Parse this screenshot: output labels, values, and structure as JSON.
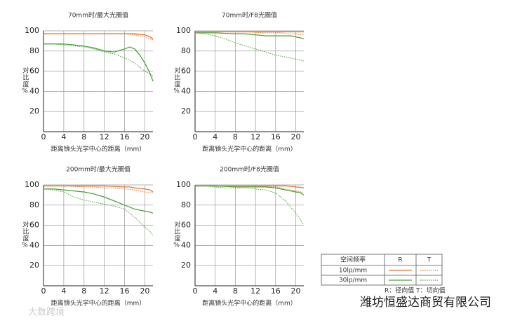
{
  "chart_data": [
    {
      "type": "line",
      "title": "70mm时/最大光圈值",
      "xlabel": "距离镜头光学中心的距离（mm）",
      "ylabel": "对比度%",
      "x": [
        0,
        2,
        4,
        6,
        8,
        10,
        12,
        14,
        16,
        17,
        18,
        19,
        20,
        21,
        21.6
      ],
      "xlim": [
        0,
        21.6
      ],
      "xticks": [
        0,
        4,
        8,
        12,
        16,
        20
      ],
      "ylim": [
        0,
        100
      ],
      "yticks": [
        20,
        40,
        60,
        80,
        100
      ],
      "grid": true,
      "series": [
        {
          "color": "#e8702a",
          "style": "solid",
          "values": [
            97,
            97,
            97,
            97,
            97,
            97,
            97,
            97,
            97,
            97,
            97,
            96.5,
            96,
            94,
            92
          ]
        },
        {
          "color": "#e8702a",
          "style": "dotted",
          "values": [
            97,
            97,
            97,
            97,
            97,
            97,
            97,
            97,
            97,
            96.5,
            96,
            95,
            94,
            92,
            91
          ]
        },
        {
          "color": "#4aa33a",
          "style": "solid",
          "values": [
            87,
            87,
            87,
            86,
            85,
            83,
            80,
            79,
            82,
            84,
            82,
            76,
            68,
            58,
            50
          ]
        },
        {
          "color": "#4aa33a",
          "style": "dotted",
          "values": [
            87,
            87,
            86,
            85,
            84,
            82,
            79,
            77,
            73,
            71,
            68,
            64,
            60,
            57,
            55
          ]
        }
      ]
    },
    {
      "type": "line",
      "title": "70mm时/F8光圈值",
      "xlabel": "距离镜头光学中心的距离（mm）",
      "ylabel": "对比度%",
      "x": [
        0,
        2,
        4,
        6,
        8,
        10,
        12,
        14,
        16,
        17,
        18,
        19,
        20,
        21,
        21.6
      ],
      "xlim": [
        0,
        21.6
      ],
      "xticks": [
        0,
        4,
        8,
        12,
        16,
        20
      ],
      "ylim": [
        0,
        100
      ],
      "yticks": [
        20,
        40,
        60,
        80,
        100
      ],
      "grid": true,
      "series": [
        {
          "color": "#e8702a",
          "style": "solid",
          "values": [
            99,
            99,
            99,
            99,
            99,
            99,
            99,
            99,
            99,
            99,
            99,
            99,
            99,
            99,
            99
          ]
        },
        {
          "color": "#e8702a",
          "style": "dotted",
          "values": [
            99,
            99,
            99,
            99,
            99,
            99,
            98.5,
            98,
            98,
            98,
            97.5,
            97,
            97,
            96,
            96
          ]
        },
        {
          "color": "#4aa33a",
          "style": "solid",
          "values": [
            98,
            98,
            98,
            97.5,
            97,
            97,
            96,
            95,
            95,
            95,
            95,
            95,
            94,
            93,
            92
          ]
        },
        {
          "color": "#4aa33a",
          "style": "dotted",
          "values": [
            98,
            97,
            95,
            92,
            88,
            85,
            82,
            79,
            76,
            75,
            74,
            73,
            72,
            71,
            70
          ]
        }
      ]
    },
    {
      "type": "line",
      "title": "200mm时/最大光圈值",
      "xlabel": "距离镜头光学中心的距离（mm）",
      "ylabel": "对比度%",
      "x": [
        0,
        2,
        4,
        6,
        8,
        10,
        12,
        14,
        16,
        17,
        18,
        19,
        20,
        21,
        21.6
      ],
      "xlim": [
        0,
        21.6
      ],
      "xticks": [
        0,
        4,
        8,
        12,
        16,
        20
      ],
      "ylim": [
        0,
        100
      ],
      "yticks": [
        20,
        40,
        60,
        80,
        100
      ],
      "grid": true,
      "series": [
        {
          "color": "#e8702a",
          "style": "solid",
          "values": [
            99,
            99,
            99,
            99,
            99,
            99,
            99,
            98.5,
            98,
            98,
            97,
            96.5,
            96,
            95,
            93
          ]
        },
        {
          "color": "#e8702a",
          "style": "dotted",
          "values": [
            99,
            99,
            99,
            98.5,
            98,
            98,
            97,
            97,
            96,
            95.5,
            95,
            94,
            93,
            92,
            92
          ]
        },
        {
          "color": "#4aa33a",
          "style": "solid",
          "values": [
            96,
            96,
            95,
            94,
            93,
            91,
            88,
            84,
            80,
            78,
            76,
            75,
            74,
            73,
            72
          ]
        },
        {
          "color": "#4aa33a",
          "style": "dotted",
          "values": [
            96,
            95,
            93,
            88,
            85,
            83,
            81,
            79,
            76,
            72,
            68,
            63,
            58,
            54,
            50
          ]
        }
      ]
    },
    {
      "type": "line",
      "title": "200mm时/F8光圈值",
      "xlabel": "距离镜头光学中心的距离（mm）",
      "ylabel": "对比度%",
      "x": [
        0,
        2,
        4,
        6,
        8,
        10,
        12,
        14,
        16,
        17,
        18,
        19,
        20,
        21,
        21.6
      ],
      "xlim": [
        0,
        21.6
      ],
      "xticks": [
        0,
        4,
        8,
        12,
        16,
        20
      ],
      "ylim": [
        0,
        100
      ],
      "yticks": [
        20,
        40,
        60,
        80,
        100
      ],
      "grid": true,
      "series": [
        {
          "color": "#e8702a",
          "style": "solid",
          "values": [
            99,
            99,
            99,
            99,
            99,
            99,
            99,
            99,
            99,
            99,
            99,
            98.5,
            98,
            97.5,
            97
          ]
        },
        {
          "color": "#e8702a",
          "style": "dotted",
          "values": [
            99,
            99,
            99,
            99,
            99,
            99,
            99,
            98.5,
            98,
            97,
            96,
            95,
            94,
            93,
            92
          ]
        },
        {
          "color": "#4aa33a",
          "style": "solid",
          "values": [
            99,
            99,
            99,
            98.5,
            98,
            98,
            98,
            98,
            97,
            96,
            95,
            94,
            93,
            92,
            90
          ]
        },
        {
          "color": "#4aa33a",
          "style": "dotted",
          "values": [
            99,
            99,
            98,
            97,
            97,
            97,
            96,
            95,
            92,
            88,
            84,
            78,
            72,
            65,
            60
          ]
        }
      ]
    }
  ],
  "legend": {
    "header": [
      "空间频率",
      "R",
      "T"
    ],
    "rows": [
      "10lp/mm",
      "30lp/mm"
    ],
    "note": "R：径向值  T：切向值"
  },
  "watermark": {
    "left": "大数跨境",
    "right": "潍坊恒盛达商贸有限公司"
  }
}
